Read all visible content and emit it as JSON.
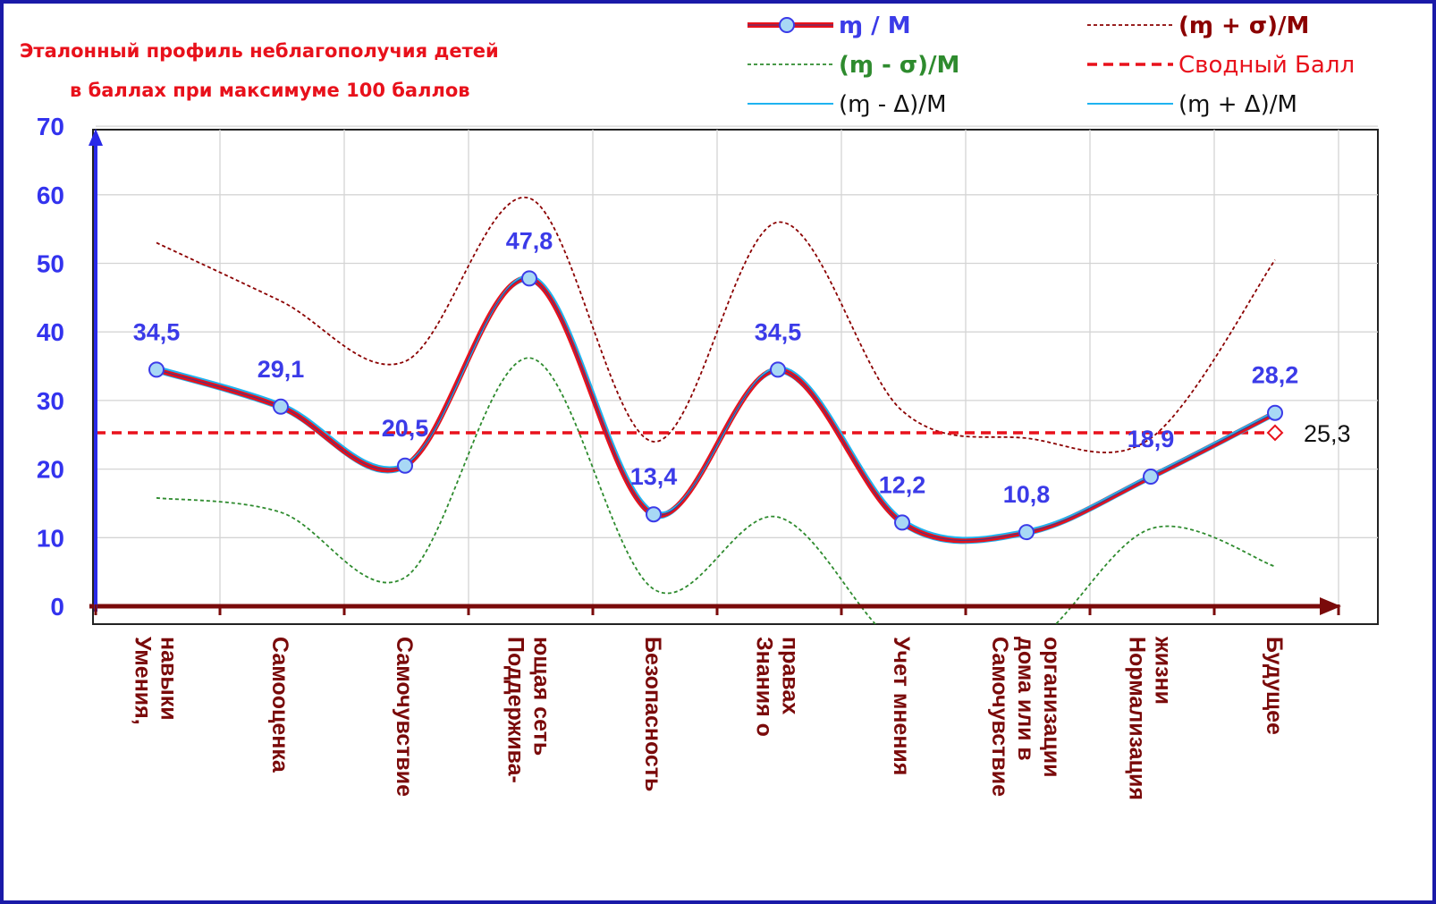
{
  "chart_data": {
    "type": "line",
    "title_lines": [
      "Эталонный профиль  неблагополучия  детей",
      "в баллах  при максимуме 100 баллов"
    ],
    "categories": [
      [
        "Умения,",
        "навыки"
      ],
      [
        "Самооценка"
      ],
      [
        "Самочувствие"
      ],
      [
        "Поддержива-",
        "ющая сеть"
      ],
      [
        "Безопасность"
      ],
      [
        "Знания о",
        "правах"
      ],
      [
        "Учет мнения"
      ],
      [
        "Самочувствие",
        "дома или в",
        "организации"
      ],
      [
        "Нормализация",
        "жизни"
      ],
      [
        "Будущее"
      ]
    ],
    "ylim": [
      0,
      70
    ],
    "yticks": [
      "0",
      "10",
      "20",
      "30",
      "40",
      "50",
      "60",
      "70"
    ],
    "grid": true,
    "legend_position": "top-right",
    "series": [
      {
        "name": "ɱ / M",
        "role": "main",
        "values": [
          34.5,
          29.1,
          20.5,
          47.8,
          13.4,
          34.5,
          12.2,
          10.8,
          18.9,
          28.2
        ],
        "labels": [
          "34,5",
          "29,1",
          "20,5",
          "47,8",
          "13,4",
          "34,5",
          "12,2",
          "10,8",
          "18,9",
          "28,2"
        ],
        "color": "#e8111b",
        "marker_color": "#a8d8f5"
      },
      {
        "name": "(ɱ + σ)/M",
        "role": "upper",
        "values": [
          53,
          44.5,
          35.7,
          59.5,
          24,
          56,
          28.5,
          24.5,
          24.5,
          50.5
        ],
        "color": "#8b0000"
      },
      {
        "name": "(ɱ - σ)/M",
        "role": "lower",
        "values": [
          15.8,
          13.7,
          4.2,
          36.2,
          2.5,
          13,
          -6,
          -6,
          11.3,
          5.8
        ],
        "color": "#2e8b2e"
      },
      {
        "name": "Сводный Балл",
        "role": "summary",
        "value": 25.3,
        "label": "25,3",
        "color": "#e8111b"
      },
      {
        "name": "(ɱ - Δ)/M",
        "role": "band",
        "color": "#1fb3f0"
      },
      {
        "name": "(ɱ + Δ)/M",
        "role": "band",
        "color": "#1fb3f0"
      }
    ]
  }
}
